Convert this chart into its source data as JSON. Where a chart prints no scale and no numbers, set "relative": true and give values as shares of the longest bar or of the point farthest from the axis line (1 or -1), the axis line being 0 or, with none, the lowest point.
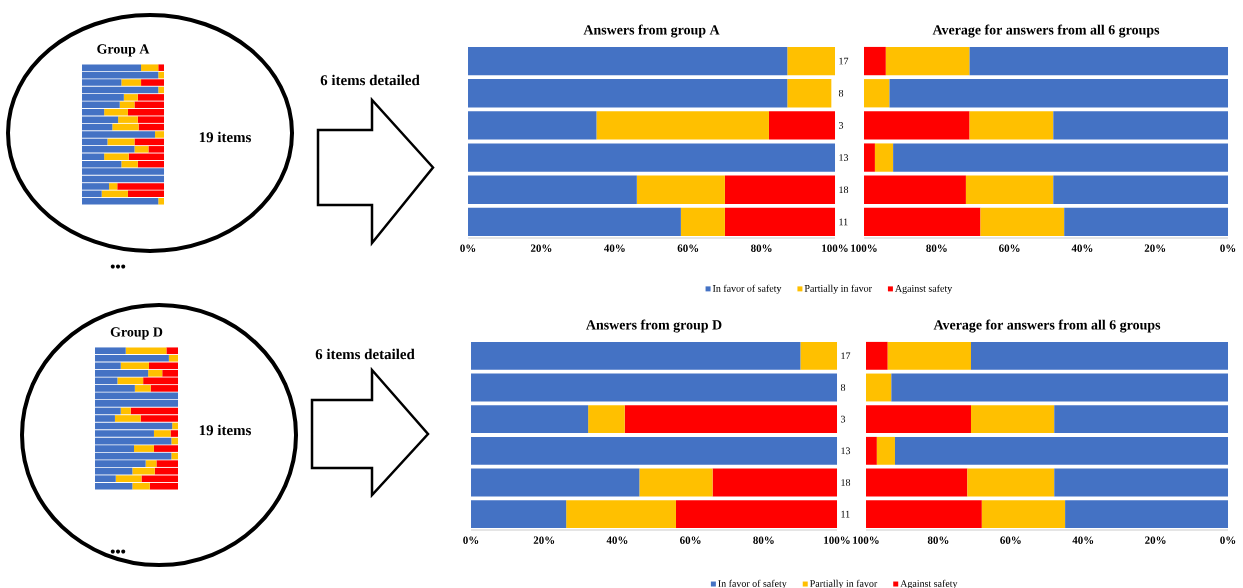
{
  "chart_data": [
    {
      "type": "bar",
      "orientation": "horizontal",
      "stacked": true,
      "relative": true,
      "title": "Group A",
      "annotations": [
        "19 items",
        "6 items detailed",
        "•••"
      ],
      "categories": [
        null,
        null,
        null,
        null,
        null,
        null,
        null,
        null,
        null,
        null,
        null,
        null,
        null,
        null,
        null,
        null,
        null,
        null,
        null
      ],
      "series": [
        {
          "color": "#4472c4",
          "values": [
            0.72,
            0.93,
            0.48,
            0.93,
            0.51,
            0.46,
            0.27,
            0.44,
            0.37,
            0.89,
            0.31,
            0.64,
            0.27,
            0.48,
            1,
            1,
            0.33,
            0.24,
            0.93
          ]
        },
        {
          "color": "#ffc000",
          "values": [
            0.21,
            0.07,
            0.24,
            0.07,
            0.17,
            0.18,
            0.29,
            0.24,
            0.32,
            0.11,
            0.33,
            0.17,
            0.3,
            0.2,
            null,
            null,
            0.1,
            0.32,
            0.07
          ]
        },
        {
          "color": "#ff0000",
          "values": [
            0.07,
            null,
            0.28,
            null,
            0.32,
            0.36,
            0.44,
            0.32,
            0.31,
            null,
            0.36,
            0.19,
            0.43,
            0.32,
            null,
            null,
            0.57,
            0.44,
            null
          ]
        }
      ]
    },
    {
      "type": "bar",
      "orientation": "horizontal",
      "stacked": true,
      "title": "Answers from group A",
      "legend": "bottom",
      "categories": [
        "17",
        "8",
        "3",
        "13",
        "18",
        "11"
      ],
      "xlim": [
        0,
        100
      ],
      "xticks": [
        {
          "value": 0,
          "label": "0%"
        },
        {
          "value": 20,
          "label": "20%"
        },
        {
          "value": 40,
          "label": "40%"
        },
        {
          "value": 60,
          "label": "60%"
        },
        {
          "value": 80,
          "label": "80%"
        },
        {
          "value": 100,
          "label": "100%"
        }
      ],
      "series": [
        {
          "name": "In favor of safety",
          "color": "#4472c4",
          "values": [
            87,
            87,
            35,
            100,
            46,
            58
          ]
        },
        {
          "name": "Partially in favor",
          "color": "#ffc000",
          "values": [
            13,
            12,
            47,
            null,
            24,
            12
          ]
        },
        {
          "name": "Against safety",
          "color": "#ff0000",
          "values": [
            null,
            null,
            18,
            null,
            30,
            30
          ]
        }
      ]
    },
    {
      "type": "bar",
      "orientation": "horizontal",
      "stacked": true,
      "title": "Average for answers from all 6 groups",
      "tick_labels": "x",
      "categories": [
        "17",
        "8",
        "3",
        "13",
        "18",
        "11"
      ],
      "xlim": [
        100,
        0
      ],
      "xticks": [
        {
          "value": 100,
          "label": "100%"
        },
        {
          "value": 80,
          "label": "80%"
        },
        {
          "value": 60,
          "label": "60%"
        },
        {
          "value": 40,
          "label": "40%"
        },
        {
          "value": 20,
          "label": "20%"
        },
        {
          "value": 0,
          "label": "0%"
        }
      ],
      "series": [
        {
          "color": "#4472c4",
          "values": [
            71,
            93,
            48,
            92,
            48,
            45
          ]
        },
        {
          "color": "#ffc000",
          "values": [
            23,
            7,
            23,
            5,
            24,
            23
          ]
        },
        {
          "color": "#ff0000",
          "values": [
            6,
            null,
            29,
            3,
            28,
            32
          ]
        }
      ]
    },
    {
      "type": "bar",
      "orientation": "horizontal",
      "stacked": true,
      "relative": true,
      "title": "Group D",
      "annotations": [
        "19 items",
        "6 items detailed",
        "•••"
      ],
      "categories": [
        null,
        null,
        null,
        null,
        null,
        null,
        null,
        null,
        null,
        null,
        null,
        null,
        null,
        null,
        null,
        null,
        null,
        null,
        null
      ],
      "series": [
        {
          "color": "#4472c4",
          "values": [
            0.37,
            0.89,
            0.31,
            0.64,
            0.27,
            0.48,
            1,
            1,
            0.31,
            0.24,
            0.93,
            0.71,
            0.92,
            0.47,
            0.92,
            0.61,
            0.45,
            0.25,
            0.45
          ]
        },
        {
          "color": "#ffc000",
          "values": [
            0.49,
            0.11,
            0.34,
            0.17,
            0.31,
            0.19,
            null,
            null,
            0.12,
            0.31,
            0.07,
            0.2,
            0.08,
            0.24,
            0.08,
            0.13,
            0.27,
            0.31,
            0.21
          ]
        },
        {
          "color": "#ff0000",
          "values": [
            0.14,
            null,
            0.35,
            0.19,
            0.42,
            0.33,
            null,
            null,
            0.57,
            0.45,
            null,
            0.09,
            null,
            0.29,
            null,
            0.26,
            0.28,
            0.44,
            0.34
          ]
        }
      ]
    },
    {
      "type": "bar",
      "orientation": "horizontal",
      "stacked": true,
      "title": "Answers from group D",
      "legend": "bottom",
      "categories": [
        "17",
        "8",
        "3",
        "13",
        "18",
        "11"
      ],
      "xlim": [
        0,
        100
      ],
      "xticks": [
        {
          "value": 0,
          "label": "0%"
        },
        {
          "value": 20,
          "label": "20%"
        },
        {
          "value": 40,
          "label": "40%"
        },
        {
          "value": 60,
          "label": "60%"
        },
        {
          "value": 80,
          "label": "80%"
        },
        {
          "value": 100,
          "label": "100%"
        }
      ],
      "series": [
        {
          "name": "In favor of safety",
          "color": "#4472c4",
          "values": [
            90,
            100,
            32,
            100,
            46,
            26
          ]
        },
        {
          "name": "Partially in favor",
          "color": "#ffc000",
          "values": [
            10,
            null,
            10,
            null,
            20,
            30
          ]
        },
        {
          "name": "Against safety",
          "color": "#ff0000",
          "values": [
            null,
            null,
            58,
            null,
            34,
            44
          ]
        }
      ]
    },
    {
      "type": "bar",
      "orientation": "horizontal",
      "stacked": true,
      "title": "Average for answers from all 6 groups",
      "tick_labels": "x",
      "categories": [
        "17",
        "8",
        "3",
        "13",
        "18",
        "11"
      ],
      "xlim": [
        100,
        0
      ],
      "xticks": [
        {
          "value": 100,
          "label": "100%"
        },
        {
          "value": 80,
          "label": "80%"
        },
        {
          "value": 60,
          "label": "60%"
        },
        {
          "value": 40,
          "label": "40%"
        },
        {
          "value": 20,
          "label": "20%"
        },
        {
          "value": 0,
          "label": "0%"
        }
      ],
      "series": [
        {
          "color": "#4472c4",
          "values": [
            71,
            93,
            48,
            92,
            48,
            45
          ]
        },
        {
          "color": "#ffc000",
          "values": [
            23,
            7,
            23,
            5,
            24,
            23
          ]
        },
        {
          "color": "#ff0000",
          "values": [
            6,
            null,
            29,
            3,
            28,
            32
          ]
        }
      ]
    }
  ]
}
